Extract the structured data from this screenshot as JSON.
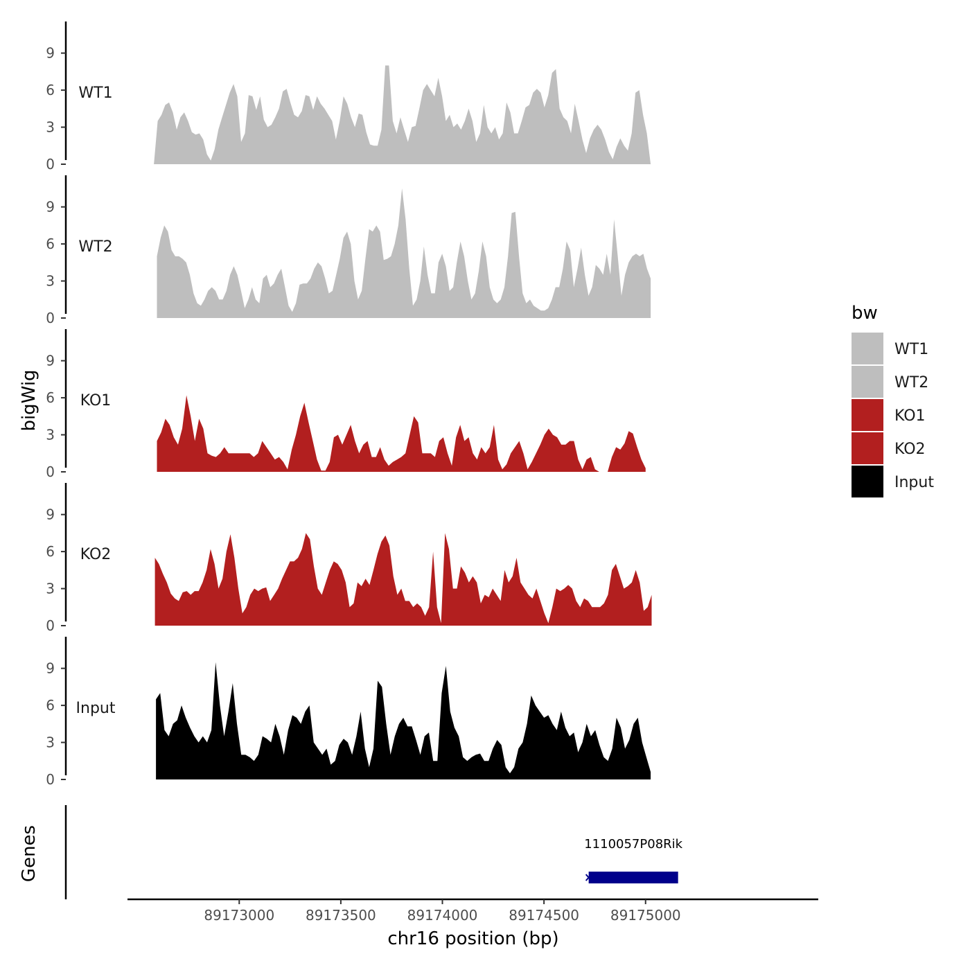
{
  "chart_data": {
    "type": "area",
    "y_axis_title": "bigWig",
    "genes_axis_title": "Genes",
    "x_axis_title": "chr16 position (bp)",
    "x_range": [
      89172450,
      89175850
    ],
    "x_ticks": [
      89173000,
      89173500,
      89174000,
      89174500,
      89175000
    ],
    "y_range": [
      0,
      11
    ],
    "y_ticks": [
      0,
      3,
      6,
      9
    ],
    "colors": {
      "WT1": "#bebebe",
      "WT2": "#bebebe",
      "KO1": "#b21f1f",
      "KO2": "#b21f1f",
      "Input": "#000000",
      "gene": "#00008b"
    },
    "legend": {
      "title": "bw",
      "entries": [
        "WT1",
        "WT2",
        "KO1",
        "KO2",
        "Input"
      ]
    },
    "tracks": [
      {
        "name": "WT1",
        "label": "WT1",
        "x_start": 89172580,
        "x_end": 89175025,
        "values": [
          0,
          3.5,
          4.0,
          4.8,
          5.0,
          4.2,
          2.8,
          3.8,
          4.2,
          3.5,
          2.6,
          2.4,
          2.5,
          2.0,
          0.8,
          0.3,
          1.2,
          2.8,
          3.8,
          4.8,
          5.8,
          6.5,
          5.5,
          1.8,
          2.5,
          5.6,
          5.5,
          4.4,
          5.5,
          3.6,
          3.0,
          3.2,
          3.8,
          4.5,
          5.9,
          6.1,
          5.0,
          4.0,
          3.8,
          4.3,
          5.6,
          5.5,
          4.4,
          5.5,
          4.9,
          4.5,
          4.0,
          3.5,
          2.0,
          3.5,
          5.5,
          4.9,
          3.8,
          3.0,
          4.1,
          4.0,
          2.6,
          1.6,
          1.5,
          1.5,
          2.8,
          8.0,
          8.0,
          3.5,
          2.5,
          3.8,
          2.8,
          1.8,
          3.0,
          3.1,
          4.5,
          6.0,
          6.5,
          6.0,
          5.5,
          7.0,
          5.5,
          3.5,
          4.0,
          3.0,
          3.3,
          2.8,
          3.5,
          4.5,
          3.5,
          1.8,
          2.5,
          4.8,
          3.0,
          2.5,
          3.0,
          2.0,
          2.5,
          5.0,
          4.2,
          2.5,
          2.5,
          3.5,
          4.6,
          4.8,
          5.8,
          6.1,
          5.8,
          4.6,
          5.6,
          7.4,
          7.7,
          4.5,
          3.8,
          3.5,
          2.5,
          4.9,
          3.5,
          2.0,
          0.9,
          2.1,
          2.8,
          3.2,
          2.8,
          2.0,
          1.0,
          0.4,
          1.4,
          2.1,
          1.5,
          1.1,
          2.5,
          5.8,
          6.0,
          4.0,
          2.5,
          0
        ]
      },
      {
        "name": "WT2",
        "label": "WT2",
        "x_start": 89172595,
        "x_end": 89175025,
        "values": [
          5.0,
          6.5,
          7.5,
          7.0,
          5.5,
          5.0,
          5.0,
          4.8,
          4.5,
          3.5,
          2.0,
          1.2,
          1.0,
          1.5,
          2.2,
          2.5,
          2.2,
          1.5,
          1.5,
          2.2,
          3.5,
          4.2,
          3.5,
          2.2,
          0.8,
          1.5,
          2.5,
          1.5,
          1.2,
          3.2,
          3.5,
          2.5,
          2.8,
          3.5,
          4.0,
          2.5,
          1.0,
          0.5,
          1.2,
          2.7,
          2.8,
          2.8,
          3.2,
          4.0,
          4.5,
          4.2,
          3.2,
          2.0,
          2.2,
          3.5,
          4.8,
          6.5,
          7.0,
          6.0,
          3.0,
          1.5,
          2.2,
          4.8,
          7.2,
          7.0,
          7.5,
          7.0,
          4.7,
          4.8,
          5.0,
          6.0,
          7.5,
          10.5,
          8.0,
          4.0,
          1.0,
          1.5,
          3.0,
          5.8,
          3.5,
          2.0,
          2.0,
          4.5,
          5.2,
          4.2,
          2.2,
          2.5,
          4.5,
          6.2,
          5.0,
          3.0,
          1.5,
          2.0,
          3.8,
          6.2,
          5.0,
          2.5,
          1.5,
          1.2,
          1.5,
          2.5,
          5.0,
          8.5,
          8.6,
          5.0,
          2.0,
          1.2,
          1.5,
          1.0,
          0.8,
          0.6,
          0.6,
          0.8,
          1.5,
          2.5,
          2.5,
          4.0,
          6.2,
          5.5,
          2.5,
          4.0,
          5.7,
          3.5,
          1.8,
          2.5,
          4.3,
          4.0,
          3.5,
          5.2,
          3.5,
          8.0,
          5.0,
          1.8,
          3.5,
          4.5,
          5.0,
          5.2,
          5.0,
          5.2,
          4.0,
          3.2
        ]
      },
      {
        "name": "KO1",
        "label": "KO1",
        "x_start": 89172595,
        "x_end": 89175000,
        "values": [
          2.5,
          3.2,
          4.3,
          3.8,
          2.8,
          2.2,
          3.5,
          6.2,
          4.5,
          2.5,
          4.3,
          3.5,
          1.5,
          1.3,
          1.2,
          1.5,
          2.0,
          1.5,
          1.5,
          1.5,
          1.5,
          1.5,
          1.5,
          1.2,
          1.5,
          2.5,
          2.0,
          1.5,
          1.0,
          1.2,
          0.8,
          0.2,
          1.8,
          3.0,
          4.5,
          5.6,
          4.0,
          2.5,
          1.0,
          0.1,
          0.1,
          0.8,
          2.8,
          3.0,
          2.2,
          3.0,
          3.8,
          2.5,
          1.5,
          2.2,
          2.5,
          1.2,
          1.2,
          2.0,
          1.0,
          0.5,
          0.8,
          1.0,
          1.2,
          1.5,
          3.0,
          4.5,
          4.0,
          1.5,
          1.5,
          1.5,
          1.2,
          2.5,
          2.8,
          1.5,
          0.5,
          2.8,
          3.8,
          2.5,
          2.8,
          1.5,
          1.0,
          2.0,
          1.5,
          2.0,
          3.8,
          1.0,
          0.2,
          0.6,
          1.5,
          2.0,
          2.5,
          1.5,
          0.2,
          0.8,
          1.5,
          2.2,
          3.0,
          3.5,
          3.0,
          2.8,
          2.2,
          2.2,
          2.5,
          2.5,
          1.0,
          0.2,
          1.0,
          1.2,
          0.2,
          0.0,
          0.0,
          0.0,
          1.2,
          2.0,
          1.8,
          2.3,
          3.3,
          3.1,
          2.0,
          1.0,
          0.3
        ]
      },
      {
        "name": "KO2",
        "label": "KO2",
        "x_start": 89172585,
        "x_end": 89175030,
        "values": [
          5.5,
          5.0,
          4.2,
          3.5,
          2.6,
          2.2,
          2.0,
          2.7,
          2.8,
          2.5,
          2.8,
          2.8,
          3.5,
          4.5,
          6.2,
          5.0,
          3.0,
          3.8,
          6.0,
          7.4,
          5.5,
          3.0,
          1.0,
          1.5,
          2.5,
          3.0,
          2.8,
          3.0,
          3.1,
          2.0,
          2.5,
          3.0,
          3.8,
          4.5,
          5.2,
          5.2,
          5.5,
          6.2,
          7.5,
          7.0,
          4.8,
          3.0,
          2.5,
          3.5,
          4.5,
          5.2,
          5.0,
          4.5,
          3.5,
          1.5,
          1.8,
          3.5,
          3.2,
          3.8,
          3.3,
          4.5,
          5.8,
          6.8,
          7.3,
          6.5,
          4.0,
          2.5,
          3.0,
          2.0,
          2.0,
          1.5,
          1.8,
          1.5,
          0.8,
          1.5,
          6.0,
          1.5,
          0.2,
          7.5,
          6.2,
          3.0,
          3.0,
          4.8,
          4.3,
          3.5,
          4.0,
          3.5,
          1.8,
          2.5,
          2.3,
          3.0,
          2.5,
          2.0,
          4.5,
          3.5,
          4.0,
          5.5,
          3.5,
          3.0,
          2.5,
          2.2,
          3.0,
          2.0,
          1.0,
          0.2,
          1.5,
          3.0,
          2.8,
          3.0,
          3.3,
          3.0,
          2.0,
          1.5,
          2.2,
          2.0,
          1.5,
          1.5,
          1.5,
          1.8,
          2.5,
          4.5,
          5.0,
          4.0,
          3.0,
          3.2,
          3.5,
          4.5,
          3.5,
          1.2,
          1.5,
          2.5
        ]
      },
      {
        "name": "Input",
        "label": "Input",
        "x_start": 89172590,
        "x_end": 89175025,
        "values": [
          6.5,
          7.0,
          4.0,
          3.5,
          4.5,
          4.8,
          6.0,
          5.0,
          4.2,
          3.5,
          3.0,
          3.5,
          3.0,
          4.0,
          9.5,
          6.0,
          3.5,
          5.5,
          7.8,
          4.5,
          2.0,
          2.0,
          1.8,
          1.5,
          2.0,
          3.5,
          3.3,
          3.0,
          4.5,
          3.5,
          2.0,
          4.0,
          5.2,
          5.0,
          4.5,
          5.5,
          6.0,
          3.0,
          2.5,
          2.0,
          2.5,
          1.2,
          1.5,
          2.8,
          3.3,
          3.0,
          2.0,
          3.5,
          5.5,
          2.5,
          1.0,
          2.5,
          8.0,
          7.5,
          4.5,
          2.0,
          3.5,
          4.5,
          5.0,
          4.3,
          4.3,
          3.2,
          2.0,
          3.5,
          3.8,
          1.5,
          1.5,
          7.0,
          9.2,
          5.5,
          4.2,
          3.5,
          1.8,
          1.5,
          1.8,
          2.0,
          2.1,
          1.5,
          1.5,
          2.5,
          3.2,
          2.8,
          1.0,
          0.5,
          1.0,
          2.5,
          3.0,
          4.5,
          6.8,
          6.0,
          5.5,
          5.0,
          5.2,
          4.5,
          4.0,
          5.5,
          4.2,
          3.5,
          3.8,
          2.2,
          3.0,
          4.5,
          3.5,
          4.0,
          2.8,
          1.8,
          1.5,
          2.5,
          5.0,
          4.2,
          2.5,
          3.2,
          4.5,
          5.0,
          3.0,
          1.8,
          0.6
        ]
      }
    ],
    "genes": [
      {
        "name": "1110057P08Rik",
        "start": 89174720,
        "end": 89175160,
        "strand": "-"
      }
    ]
  }
}
